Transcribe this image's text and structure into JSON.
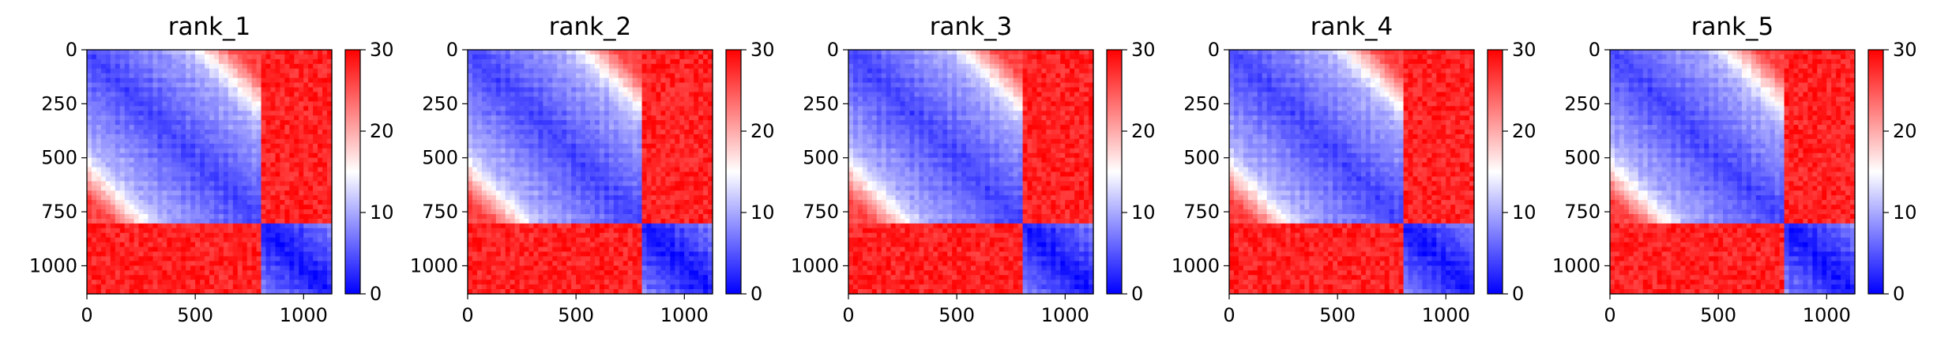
{
  "figure": {
    "panel_count": 5
  },
  "chart_data": [
    {
      "type": "heatmap",
      "title": "rank_1",
      "xlabel": "",
      "ylabel": "",
      "xlim": [
        0,
        1130
      ],
      "ylim": [
        1130,
        0
      ],
      "x_ticks": [
        0,
        500,
        1000
      ],
      "y_ticks": [
        0,
        250,
        500,
        750,
        1000
      ],
      "x_tick_labels": [
        "0",
        "500",
        "1000"
      ],
      "y_tick_labels": [
        "0",
        "250",
        "500",
        "750",
        "1000"
      ],
      "colorbar": {
        "range": [
          0,
          30
        ],
        "ticks": [
          0,
          10,
          20,
          30
        ],
        "tick_labels": [
          "0",
          "10",
          "20",
          "30"
        ],
        "colormap": "bwr",
        "colors": [
          "#0000ff",
          "#ffffff",
          "#ff0000"
        ]
      },
      "blocks": {
        "split": 795,
        "top_left_diagonal": [
          4,
          14
        ],
        "top_left_corner": [
          26,
          30
        ],
        "bottom_right_diagonal": [
          1,
          8
        ],
        "off_diagonal": [
          26,
          30
        ]
      }
    },
    {
      "type": "heatmap",
      "title": "rank_2",
      "xlabel": "",
      "ylabel": "",
      "xlim": [
        0,
        1130
      ],
      "ylim": [
        1130,
        0
      ],
      "x_ticks": [
        0,
        500,
        1000
      ],
      "y_ticks": [
        0,
        250,
        500,
        750,
        1000
      ],
      "x_tick_labels": [
        "0",
        "500",
        "1000"
      ],
      "y_tick_labels": [
        "0",
        "250",
        "500",
        "750",
        "1000"
      ],
      "colorbar": {
        "range": [
          0,
          30
        ],
        "ticks": [
          0,
          10,
          20,
          30
        ],
        "tick_labels": [
          "0",
          "10",
          "20",
          "30"
        ],
        "colormap": "bwr",
        "colors": [
          "#0000ff",
          "#ffffff",
          "#ff0000"
        ]
      },
      "blocks": {
        "split": 795,
        "top_left_diagonal": [
          4,
          14
        ],
        "top_left_corner": [
          26,
          30
        ],
        "bottom_right_diagonal": [
          1,
          8
        ],
        "off_diagonal": [
          26,
          30
        ]
      }
    },
    {
      "type": "heatmap",
      "title": "rank_3",
      "xlabel": "",
      "ylabel": "",
      "xlim": [
        0,
        1130
      ],
      "ylim": [
        1130,
        0
      ],
      "x_ticks": [
        0,
        500,
        1000
      ],
      "y_ticks": [
        0,
        250,
        500,
        750,
        1000
      ],
      "x_tick_labels": [
        "0",
        "500",
        "1000"
      ],
      "y_tick_labels": [
        "0",
        "250",
        "500",
        "750",
        "1000"
      ],
      "colorbar": {
        "range": [
          0,
          30
        ],
        "ticks": [
          0,
          10,
          20,
          30
        ],
        "tick_labels": [
          "0",
          "10",
          "20",
          "30"
        ],
        "colormap": "bwr",
        "colors": [
          "#0000ff",
          "#ffffff",
          "#ff0000"
        ]
      },
      "blocks": {
        "split": 795,
        "top_left_diagonal": [
          4,
          14
        ],
        "top_left_corner": [
          26,
          30
        ],
        "bottom_right_diagonal": [
          1,
          8
        ],
        "off_diagonal": [
          26,
          30
        ]
      }
    },
    {
      "type": "heatmap",
      "title": "rank_4",
      "xlabel": "",
      "ylabel": "",
      "xlim": [
        0,
        1130
      ],
      "ylim": [
        1130,
        0
      ],
      "x_ticks": [
        0,
        500,
        1000
      ],
      "y_ticks": [
        0,
        250,
        500,
        750,
        1000
      ],
      "x_tick_labels": [
        "0",
        "500",
        "1000"
      ],
      "y_tick_labels": [
        "0",
        "250",
        "500",
        "750",
        "1000"
      ],
      "colorbar": {
        "range": [
          0,
          30
        ],
        "ticks": [
          0,
          10,
          20,
          30
        ],
        "tick_labels": [
          "0",
          "10",
          "20",
          "30"
        ],
        "colormap": "bwr",
        "colors": [
          "#0000ff",
          "#ffffff",
          "#ff0000"
        ]
      },
      "blocks": {
        "split": 795,
        "top_left_diagonal": [
          4,
          14
        ],
        "top_left_corner": [
          26,
          30
        ],
        "bottom_right_diagonal": [
          1,
          8
        ],
        "off_diagonal": [
          26,
          30
        ]
      }
    },
    {
      "type": "heatmap",
      "title": "rank_5",
      "xlabel": "",
      "ylabel": "",
      "xlim": [
        0,
        1130
      ],
      "ylim": [
        1130,
        0
      ],
      "x_ticks": [
        0,
        500,
        1000
      ],
      "y_ticks": [
        0,
        250,
        500,
        750,
        1000
      ],
      "x_tick_labels": [
        "0",
        "500",
        "1000"
      ],
      "y_tick_labels": [
        "0",
        "250",
        "500",
        "750",
        "1000"
      ],
      "colorbar": {
        "range": [
          0,
          30
        ],
        "ticks": [
          0,
          10,
          20,
          30
        ],
        "tick_labels": [
          "0",
          "10",
          "20",
          "30"
        ],
        "colormap": "bwr",
        "colors": [
          "#0000ff",
          "#ffffff",
          "#ff0000"
        ]
      },
      "blocks": {
        "split": 795,
        "top_left_diagonal": [
          4,
          14
        ],
        "top_left_corner": [
          26,
          30
        ],
        "bottom_right_diagonal": [
          1,
          8
        ],
        "off_diagonal": [
          26,
          30
        ]
      }
    }
  ]
}
